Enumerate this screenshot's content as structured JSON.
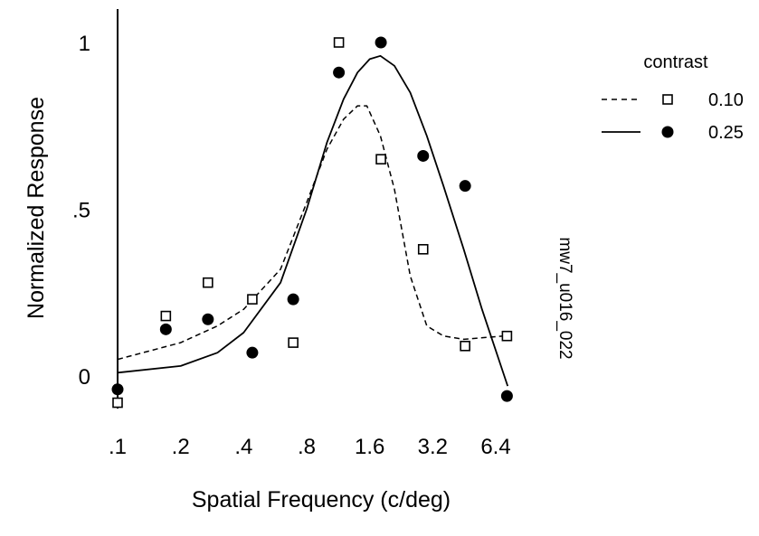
{
  "chart_data": {
    "type": "scatter",
    "xlabel": "Spatial Frequency (c/deg)",
    "ylabel": "Normalized Response",
    "x_scale": "log2",
    "xlim": [
      0.1,
      8
    ],
    "ylim": [
      -0.08,
      1.1
    ],
    "x_ticks": [
      {
        "value": 0.1,
        "label": ".1"
      },
      {
        "value": 0.2,
        "label": ".2"
      },
      {
        "value": 0.4,
        "label": ".4"
      },
      {
        "value": 0.8,
        "label": ".8"
      },
      {
        "value": 1.6,
        "label": "1.6"
      },
      {
        "value": 3.2,
        "label": "3.2"
      },
      {
        "value": 6.4,
        "label": "6.4"
      }
    ],
    "y_ticks": [
      {
        "value": 0,
        "label": "0"
      },
      {
        "value": 0.5,
        "label": ".5"
      },
      {
        "value": 1,
        "label": "1"
      }
    ],
    "grid": false,
    "legend": {
      "title": "contrast",
      "position": "top-right"
    },
    "side_label": "mw7_u016_022",
    "series": [
      {
        "name": "0.10",
        "marker": "open-square",
        "line_style": "dashed",
        "points": [
          {
            "x": 0.1,
            "y": -0.08
          },
          {
            "x": 0.17,
            "y": 0.18
          },
          {
            "x": 0.27,
            "y": 0.28
          },
          {
            "x": 0.44,
            "y": 0.23
          },
          {
            "x": 0.69,
            "y": 0.1
          },
          {
            "x": 1.14,
            "y": 1.0
          },
          {
            "x": 1.81,
            "y": 0.65
          },
          {
            "x": 2.88,
            "y": 0.38
          },
          {
            "x": 4.57,
            "y": 0.09
          },
          {
            "x": 7.24,
            "y": 0.12
          }
        ],
        "curve": [
          {
            "x": 0.1,
            "y": 0.05
          },
          {
            "x": 0.2,
            "y": 0.1
          },
          {
            "x": 0.3,
            "y": 0.15
          },
          {
            "x": 0.4,
            "y": 0.2
          },
          {
            "x": 0.6,
            "y": 0.32
          },
          {
            "x": 0.8,
            "y": 0.52
          },
          {
            "x": 1.0,
            "y": 0.68
          },
          {
            "x": 1.2,
            "y": 0.77
          },
          {
            "x": 1.4,
            "y": 0.81
          },
          {
            "x": 1.55,
            "y": 0.81
          },
          {
            "x": 1.8,
            "y": 0.72
          },
          {
            "x": 2.1,
            "y": 0.56
          },
          {
            "x": 2.5,
            "y": 0.3
          },
          {
            "x": 3.0,
            "y": 0.15
          },
          {
            "x": 3.6,
            "y": 0.12
          },
          {
            "x": 4.5,
            "y": 0.11
          },
          {
            "x": 7.0,
            "y": 0.12
          }
        ]
      },
      {
        "name": "0.25",
        "marker": "filled-circle",
        "line_style": "solid",
        "points": [
          {
            "x": 0.1,
            "y": -0.04
          },
          {
            "x": 0.17,
            "y": 0.14
          },
          {
            "x": 0.27,
            "y": 0.17
          },
          {
            "x": 0.44,
            "y": 0.07
          },
          {
            "x": 0.69,
            "y": 0.23
          },
          {
            "x": 1.14,
            "y": 0.91
          },
          {
            "x": 1.81,
            "y": 1.0
          },
          {
            "x": 2.88,
            "y": 0.66
          },
          {
            "x": 4.57,
            "y": 0.57
          },
          {
            "x": 7.24,
            "y": -0.06
          }
        ],
        "curve": [
          {
            "x": 0.1,
            "y": 0.01
          },
          {
            "x": 0.2,
            "y": 0.03
          },
          {
            "x": 0.3,
            "y": 0.07
          },
          {
            "x": 0.4,
            "y": 0.13
          },
          {
            "x": 0.6,
            "y": 0.28
          },
          {
            "x": 0.8,
            "y": 0.5
          },
          {
            "x": 1.0,
            "y": 0.7
          },
          {
            "x": 1.2,
            "y": 0.83
          },
          {
            "x": 1.4,
            "y": 0.91
          },
          {
            "x": 1.6,
            "y": 0.95
          },
          {
            "x": 1.8,
            "y": 0.96
          },
          {
            "x": 2.1,
            "y": 0.93
          },
          {
            "x": 2.5,
            "y": 0.85
          },
          {
            "x": 3.0,
            "y": 0.72
          },
          {
            "x": 3.6,
            "y": 0.57
          },
          {
            "x": 4.5,
            "y": 0.38
          },
          {
            "x": 5.5,
            "y": 0.2
          },
          {
            "x": 7.3,
            "y": -0.03
          }
        ]
      }
    ]
  }
}
